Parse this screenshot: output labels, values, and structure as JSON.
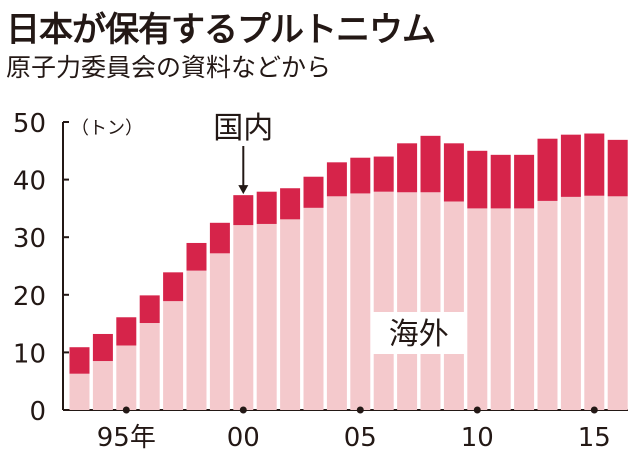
{
  "title": "日本が保有するプルトニウム",
  "subtitle": "原子力委員会の資料などから",
  "colors": {
    "domestic": "#d6244a",
    "overseas": "#f4c9cc",
    "text": "#231815",
    "background": "#ffffff"
  },
  "chart_data": {
    "type": "bar",
    "stacked": true,
    "title": "日本が保有するプルトニウム",
    "subtitle": "原子力委員会の資料などから",
    "unit_label": "（トン）",
    "ylim": [
      0,
      50
    ],
    "yticks": [
      0,
      10,
      20,
      30,
      40,
      50
    ],
    "x": [
      1993,
      1994,
      1995,
      1996,
      1997,
      1998,
      1999,
      2000,
      2001,
      2002,
      2003,
      2004,
      2005,
      2006,
      2007,
      2008,
      2009,
      2010,
      2011,
      2012,
      2013,
      2014,
      2015,
      2016
    ],
    "xtick_labels": [
      {
        "year": 1995,
        "label": "95年"
      },
      {
        "year": 2000,
        "label": "00"
      },
      {
        "year": 2005,
        "label": "05"
      },
      {
        "year": 2010,
        "label": "10"
      },
      {
        "year": 2015,
        "label": "15"
      }
    ],
    "series": [
      {
        "name": "海外",
        "values": [
          6.3,
          8.5,
          11.2,
          15.1,
          18.9,
          24.2,
          27.2,
          32.1,
          32.3,
          33.1,
          35.1,
          37.1,
          37.6,
          37.9,
          37.8,
          37.8,
          36.2,
          35.0,
          35.0,
          35.0,
          36.3,
          37.0,
          37.2,
          37.1
        ]
      },
      {
        "name": "国内",
        "values": [
          4.6,
          4.7,
          4.9,
          4.8,
          5.0,
          4.8,
          5.3,
          5.2,
          5.6,
          5.4,
          5.4,
          5.9,
          6.2,
          6.1,
          8.5,
          9.8,
          10.1,
          10.0,
          9.3,
          9.3,
          10.8,
          10.8,
          10.8,
          9.8
        ]
      }
    ],
    "annotations": [
      {
        "text": "国内",
        "year": 2000,
        "series": "国内"
      },
      {
        "text": "海外",
        "series": "海外"
      }
    ]
  }
}
